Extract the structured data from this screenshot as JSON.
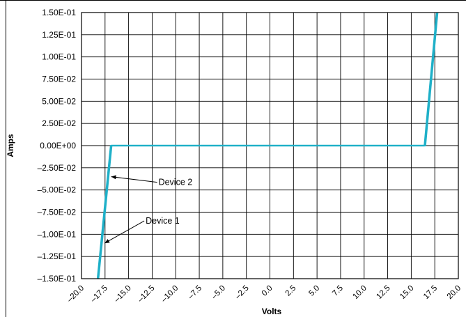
{
  "chart_data": {
    "type": "line",
    "xlabel": "Volts",
    "ylabel": "Amps",
    "xlim": [
      -20,
      20
    ],
    "ylim": [
      -0.15,
      0.15
    ],
    "x_ticks": [
      "–20.0",
      "–17.5",
      "–15.0",
      "–12.5",
      "–10.0",
      "–7.5",
      "–5.0",
      "–2.5",
      "0.0",
      "2.5",
      "5.0",
      "7.5",
      "10.0",
      "12.5",
      "15.0",
      "17.5",
      "20.0"
    ],
    "y_ticks": [
      "1.50E-01",
      "1.25E-01",
      "1.00E-01",
      "7.50E-02",
      "5.00E-02",
      "2.50E-02",
      "0.00E+00",
      "–2.50E-02",
      "–5.00E-02",
      "–7.50E-02",
      "–1.00E-01",
      "–1.25E-01",
      "–1.50E-01"
    ],
    "grid": true,
    "line_color": "#1fb0c8",
    "series": [
      {
        "x": [
          -18.3,
          -16.9,
          16.4,
          17.7
        ],
        "y": [
          -0.15,
          0.0,
          0.0,
          0.15
        ]
      },
      {
        "x": [
          -18.2,
          -16.8,
          16.5,
          17.8
        ],
        "y": [
          -0.15,
          0.0,
          0.0,
          0.15
        ]
      }
    ],
    "annotations": [
      {
        "text": "Device 2",
        "x": -17.0,
        "y": -0.035
      },
      {
        "text": "Device 1",
        "x": -17.7,
        "y": -0.11
      }
    ]
  }
}
